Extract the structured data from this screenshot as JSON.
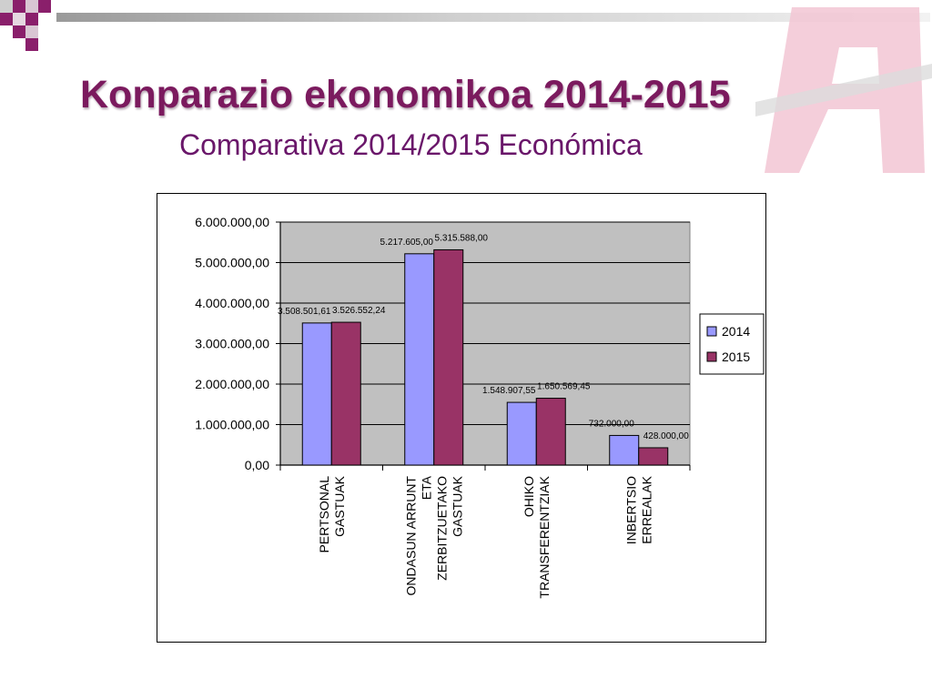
{
  "slide": {
    "title": "Konparazio ekonomikoa 2014-2015",
    "subtitle": "Comparativa 2014/2015 Económica"
  },
  "colors": {
    "title": "#7b1a5e",
    "subtitle": "#6a176a",
    "plot_background": "#c0c0c0",
    "series_2014": "#9999ff",
    "series_2015": "#993366",
    "logo": "#f2c6d4"
  },
  "chart_data": {
    "type": "bar",
    "categories": [
      [
        "PERTSONAL",
        "GASTUAK"
      ],
      [
        "ONDASUN ARRUNT",
        "ETA",
        "ZERBITZUETAKO",
        "GASTUAK"
      ],
      [
        "OHIKO",
        "TRANSFERENTZIAK"
      ],
      [
        "INBERTSIO",
        "ERREALAK"
      ]
    ],
    "series": [
      {
        "name": "2014",
        "values": [
          3508501.61,
          5217605.0,
          1548907.55,
          732000.0
        ],
        "labels": [
          "3.508.501,61",
          "5.217.605,00",
          "1.548.907,55",
          "732.000,00"
        ]
      },
      {
        "name": "2015",
        "values": [
          3526552.24,
          5315588.0,
          1650569.45,
          428000.0
        ],
        "labels": [
          "3.526.552,24",
          "5.315.588,00",
          "1.650.569,45",
          "428.000,00"
        ]
      }
    ],
    "ylim": [
      0,
      6000000
    ],
    "yticks": [
      0,
      1000000,
      2000000,
      3000000,
      4000000,
      5000000,
      6000000
    ],
    "ytick_labels": [
      "0,00",
      "1.000.000,00",
      "2.000.000,00",
      "3.000.000,00",
      "4.000.000,00",
      "5.000.000,00",
      "6.000.000,00"
    ],
    "xlabel": "",
    "ylabel": "",
    "grid": true,
    "legend": "right"
  }
}
